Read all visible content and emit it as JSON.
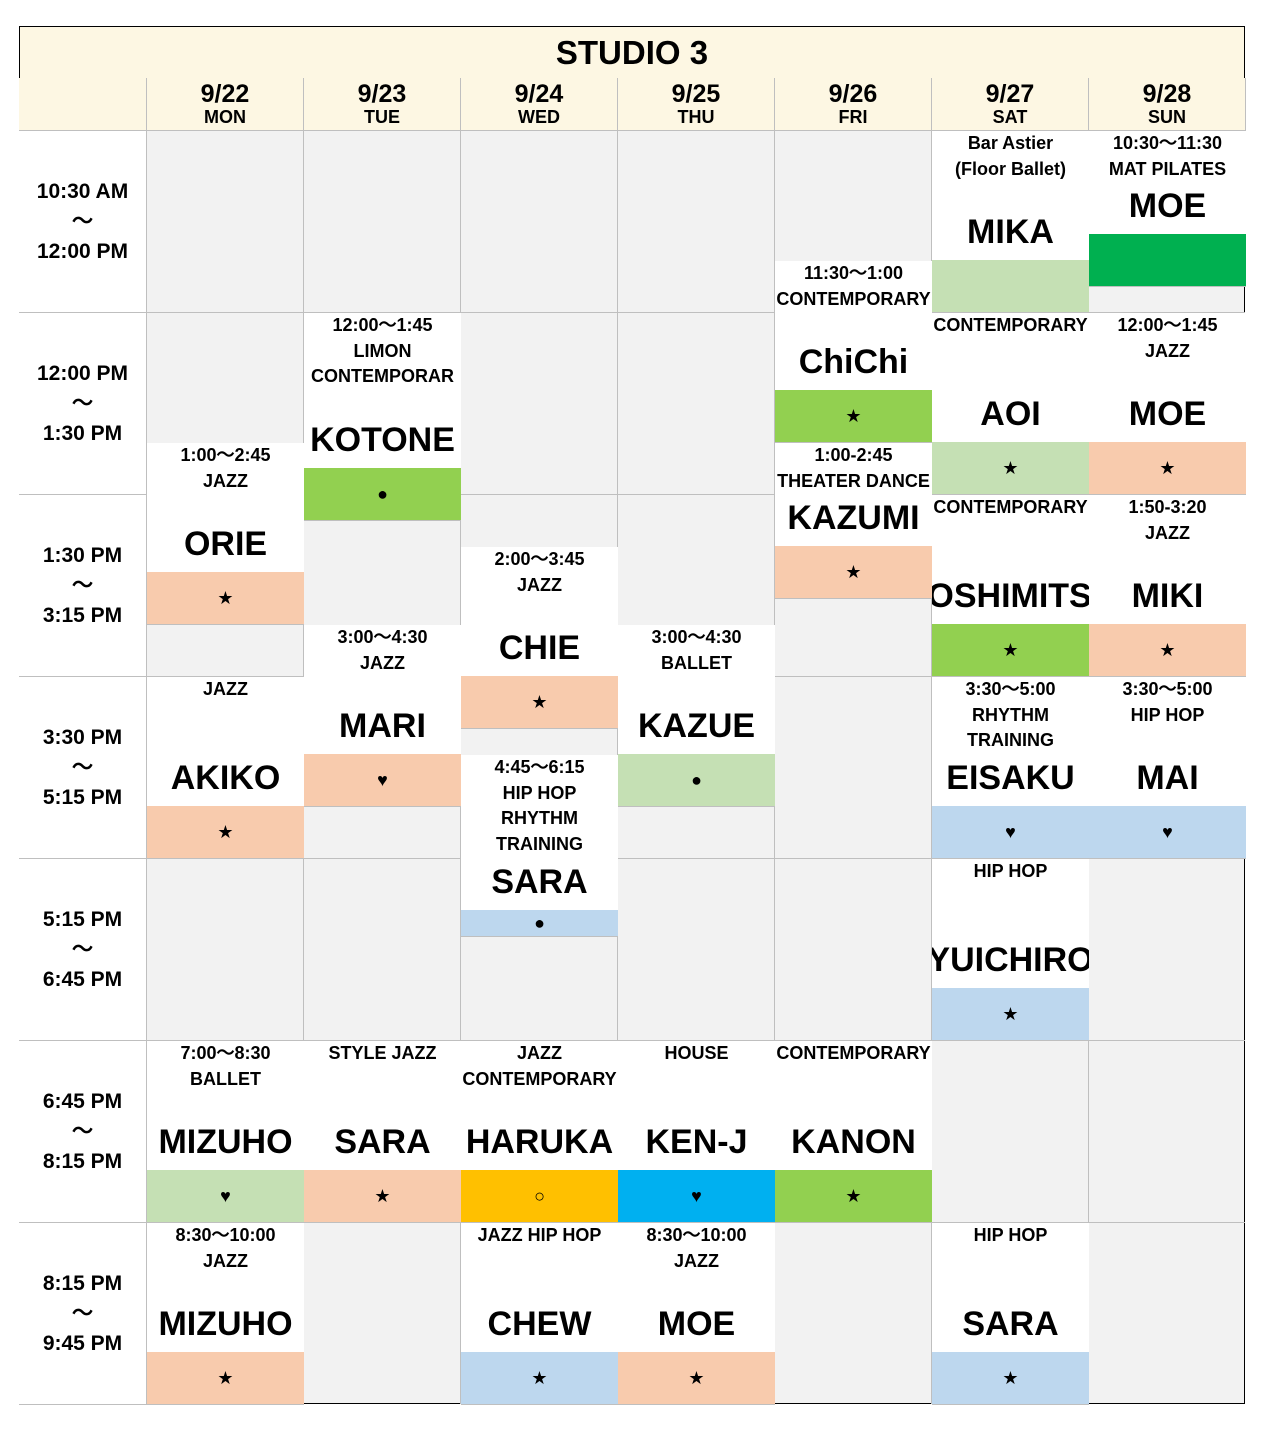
{
  "title": "STUDIO 3",
  "days": [
    {
      "date": "9/22",
      "dow": "MON"
    },
    {
      "date": "9/23",
      "dow": "TUE"
    },
    {
      "date": "9/24",
      "dow": "WED"
    },
    {
      "date": "9/25",
      "dow": "THU"
    },
    {
      "date": "9/26",
      "dow": "FRI"
    },
    {
      "date": "9/27",
      "dow": "SAT"
    },
    {
      "date": "9/28",
      "dow": "SUN"
    }
  ],
  "time_slots": [
    {
      "start": "10:30 AM",
      "sep": "～",
      "end": "12:00 PM"
    },
    {
      "start": "12:00 PM",
      "sep": "～",
      "end": "1:30 PM"
    },
    {
      "start": "1:30 PM",
      "sep": "～",
      "end": "3:15 PM"
    },
    {
      "start": "3:30 PM",
      "sep": "～",
      "end": "5:15 PM"
    },
    {
      "start": "5:15 PM",
      "sep": "～",
      "end": "6:45 PM"
    },
    {
      "start": "6:45 PM",
      "sep": "～",
      "end": "8:15 PM"
    },
    {
      "start": "8:15 PM",
      "sep": "～",
      "end": "9:45 PM"
    }
  ],
  "colors": {
    "peach": "#f8cbad",
    "sage": "#c5e0b4",
    "lime": "#92d050",
    "lightblue": "#bdd7ee",
    "green": "#00b050",
    "gold": "#ffc000",
    "cyan": "#00b0f0",
    "empty": "#f2f2f2",
    "header": "#fdf7e3"
  },
  "classes": [
    {
      "day": "MON",
      "lines": [
        "1:00～2:45",
        "JAZZ"
      ],
      "instructor": "ORIE",
      "symbol": "★",
      "color": "peach"
    },
    {
      "day": "MON",
      "lines": [
        "JAZZ"
      ],
      "instructor": "AKIKO",
      "symbol": "★",
      "color": "peach"
    },
    {
      "day": "MON",
      "lines": [
        "7:00～8:30",
        "BALLET"
      ],
      "instructor": "MIZUHO",
      "symbol": "♥",
      "color": "sage"
    },
    {
      "day": "MON",
      "lines": [
        "8:30～10:00",
        "JAZZ"
      ],
      "instructor": "MIZUHO",
      "symbol": "★",
      "color": "peach"
    },
    {
      "day": "TUE",
      "lines": [
        "12:00～1:45",
        "LIMON",
        "CONTEMPORAR"
      ],
      "instructor": "KOTONE",
      "symbol": "●",
      "color": "lime"
    },
    {
      "day": "TUE",
      "lines": [
        "3:00～4:30",
        "JAZZ"
      ],
      "instructor": "MARI",
      "symbol": "♥",
      "color": "peach"
    },
    {
      "day": "TUE",
      "lines": [
        "STYLE JAZZ"
      ],
      "instructor": "SARA",
      "symbol": "★",
      "color": "peach"
    },
    {
      "day": "WED",
      "lines": [
        "2:00～3:45",
        "JAZZ"
      ],
      "instructor": "CHIE",
      "symbol": "★",
      "color": "peach"
    },
    {
      "day": "WED",
      "lines": [
        "4:45～6:15",
        "HIP HOP",
        "RHYTHM",
        "TRAINING"
      ],
      "instructor": "SARA",
      "symbol": "●",
      "color": "lightblue"
    },
    {
      "day": "WED",
      "lines": [
        "JAZZ",
        "CONTEMPORARY"
      ],
      "instructor": "HARUKA",
      "symbol": "○",
      "color": "gold"
    },
    {
      "day": "WED",
      "lines": [
        "JAZZ HIP HOP"
      ],
      "instructor": "CHEW",
      "symbol": "★",
      "color": "lightblue"
    },
    {
      "day": "THU",
      "lines": [
        "3:00～4:30",
        "BALLET"
      ],
      "instructor": "KAZUE",
      "symbol": "●",
      "color": "sage"
    },
    {
      "day": "THU",
      "lines": [
        "HOUSE"
      ],
      "instructor": "KEN-J",
      "symbol": "♥",
      "color": "cyan"
    },
    {
      "day": "THU",
      "lines": [
        "8:30～10:00",
        "JAZZ"
      ],
      "instructor": "MOE",
      "symbol": "★",
      "color": "peach"
    },
    {
      "day": "FRI",
      "lines": [
        "11:30～1:00",
        "CONTEMPORARY"
      ],
      "instructor": "ChiChi",
      "symbol": "★",
      "color": "lime"
    },
    {
      "day": "FRI",
      "lines": [
        "1:00-2:45",
        "THEATER DANCE"
      ],
      "instructor": "KAZUMI",
      "symbol": "★",
      "color": "peach"
    },
    {
      "day": "FRI",
      "lines": [
        "CONTEMPORARY"
      ],
      "instructor": "KANON",
      "symbol": "★",
      "color": "lime"
    },
    {
      "day": "SAT",
      "lines": [
        "Bar Astier",
        "(Floor Ballet)"
      ],
      "instructor": "MIKA",
      "symbol": "",
      "color": "sage"
    },
    {
      "day": "SAT",
      "lines": [
        "CONTEMPORARY"
      ],
      "instructor": "AOI",
      "symbol": "★",
      "color": "sage"
    },
    {
      "day": "SAT",
      "lines": [
        "CONTEMPORARY"
      ],
      "instructor": "YOSHIMITSU",
      "symbol": "★",
      "color": "lime"
    },
    {
      "day": "SAT",
      "lines": [
        "3:30～5:00",
        "RHYTHM",
        "TRAINING"
      ],
      "instructor": "EISAKU",
      "symbol": "♥",
      "color": "lightblue"
    },
    {
      "day": "SAT",
      "lines": [
        "HIP HOP"
      ],
      "instructor": "YUICHIRO",
      "symbol": "★",
      "color": "lightblue"
    },
    {
      "day": "SAT",
      "lines": [
        "HIP HOP"
      ],
      "instructor": "SARA",
      "symbol": "★",
      "color": "lightblue"
    },
    {
      "day": "SUN",
      "lines": [
        "10:30～11:30",
        "MAT PILATES"
      ],
      "instructor": "MOE",
      "symbol": "",
      "color": "green"
    },
    {
      "day": "SUN",
      "lines": [
        "12:00～1:45",
        "JAZZ"
      ],
      "instructor": "MOE",
      "symbol": "★",
      "color": "peach"
    },
    {
      "day": "SUN",
      "lines": [
        "1:50-3:20",
        "JAZZ"
      ],
      "instructor": "MIKI",
      "symbol": "★",
      "color": "peach"
    },
    {
      "day": "SUN",
      "lines": [
        "3:30～5:00",
        "HIP HOP"
      ],
      "instructor": "MAI",
      "symbol": "♥",
      "color": "lightblue"
    }
  ]
}
